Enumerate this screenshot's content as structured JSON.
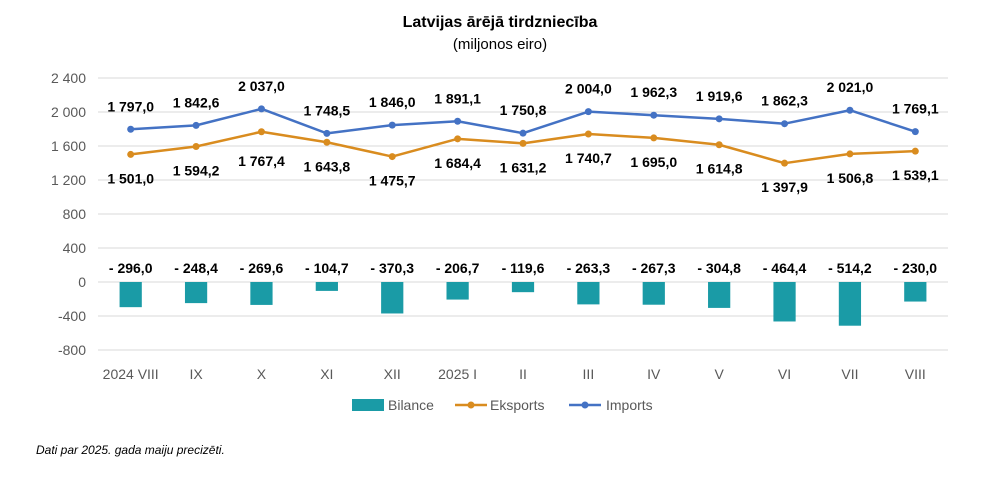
{
  "chart_data": {
    "type": "bar+line",
    "title": "Latvijas ārējā tirdzniecība",
    "subtitle": "(miljonos eiro)",
    "categories": [
      "2024 VIII",
      "IX",
      "X",
      "XI",
      "XII",
      "2025 I",
      "II",
      "III",
      "IV",
      "V",
      "VI",
      "VII",
      "VIII"
    ],
    "ylim": [
      -800,
      2400
    ],
    "yticks": [
      -800,
      -400,
      0,
      400,
      800,
      1200,
      1600,
      2000,
      2400
    ],
    "ytick_labels": [
      "-800",
      "-400",
      "0",
      "400",
      "800",
      "1 200",
      "1 600",
      "2 000",
      "2 400"
    ],
    "grid": true,
    "legend_position": "bottom",
    "series": [
      {
        "name": "Bilance",
        "kind": "bar",
        "color": "#1a9ba6",
        "values": [
          -296.0,
          -248.4,
          -269.6,
          -104.7,
          -370.3,
          -206.7,
          -119.6,
          -263.3,
          -267.3,
          -304.8,
          -464.4,
          -514.2,
          -230.0
        ],
        "labels": [
          "- 296,0",
          "- 248,4",
          "- 269,6",
          "- 104,7",
          "- 370,3",
          "- 206,7",
          "- 119,6",
          "- 263,3",
          "- 267,3",
          "- 304,8",
          "- 464,4",
          "- 514,2",
          "- 230,0"
        ]
      },
      {
        "name": "Eksports",
        "kind": "line",
        "color": "#d98c1f",
        "values": [
          1501.0,
          1594.2,
          1767.4,
          1643.8,
          1475.7,
          1684.4,
          1631.2,
          1740.7,
          1695.0,
          1614.8,
          1397.9,
          1506.8,
          1539.1
        ],
        "labels": [
          "1 501,0",
          "1 594,2",
          "1 767,4",
          "1 643,8",
          "1 475,7",
          "1 684,4",
          "1 631,2",
          "1 740,7",
          "1 695,0",
          "1 614,8",
          "1 397,9",
          "1 506,8",
          "1 539,1"
        ]
      },
      {
        "name": "Imports",
        "kind": "line",
        "color": "#4472c4",
        "values": [
          1797.0,
          1842.6,
          2037.0,
          1748.5,
          1846.0,
          1891.1,
          1750.8,
          2004.0,
          1962.3,
          1919.6,
          1862.3,
          2021.0,
          1769.1
        ],
        "labels": [
          "1 797,0",
          "1 842,6",
          "2 037,0",
          "1 748,5",
          "1 846,0",
          "1 891,1",
          "1 750,8",
          "2 004,0",
          "1 962,3",
          "1 919,6",
          "1 862,3",
          "2 021,0",
          "1 769,1"
        ]
      }
    ]
  },
  "footnote": "Dati par 2025. gada maiju precizēti."
}
